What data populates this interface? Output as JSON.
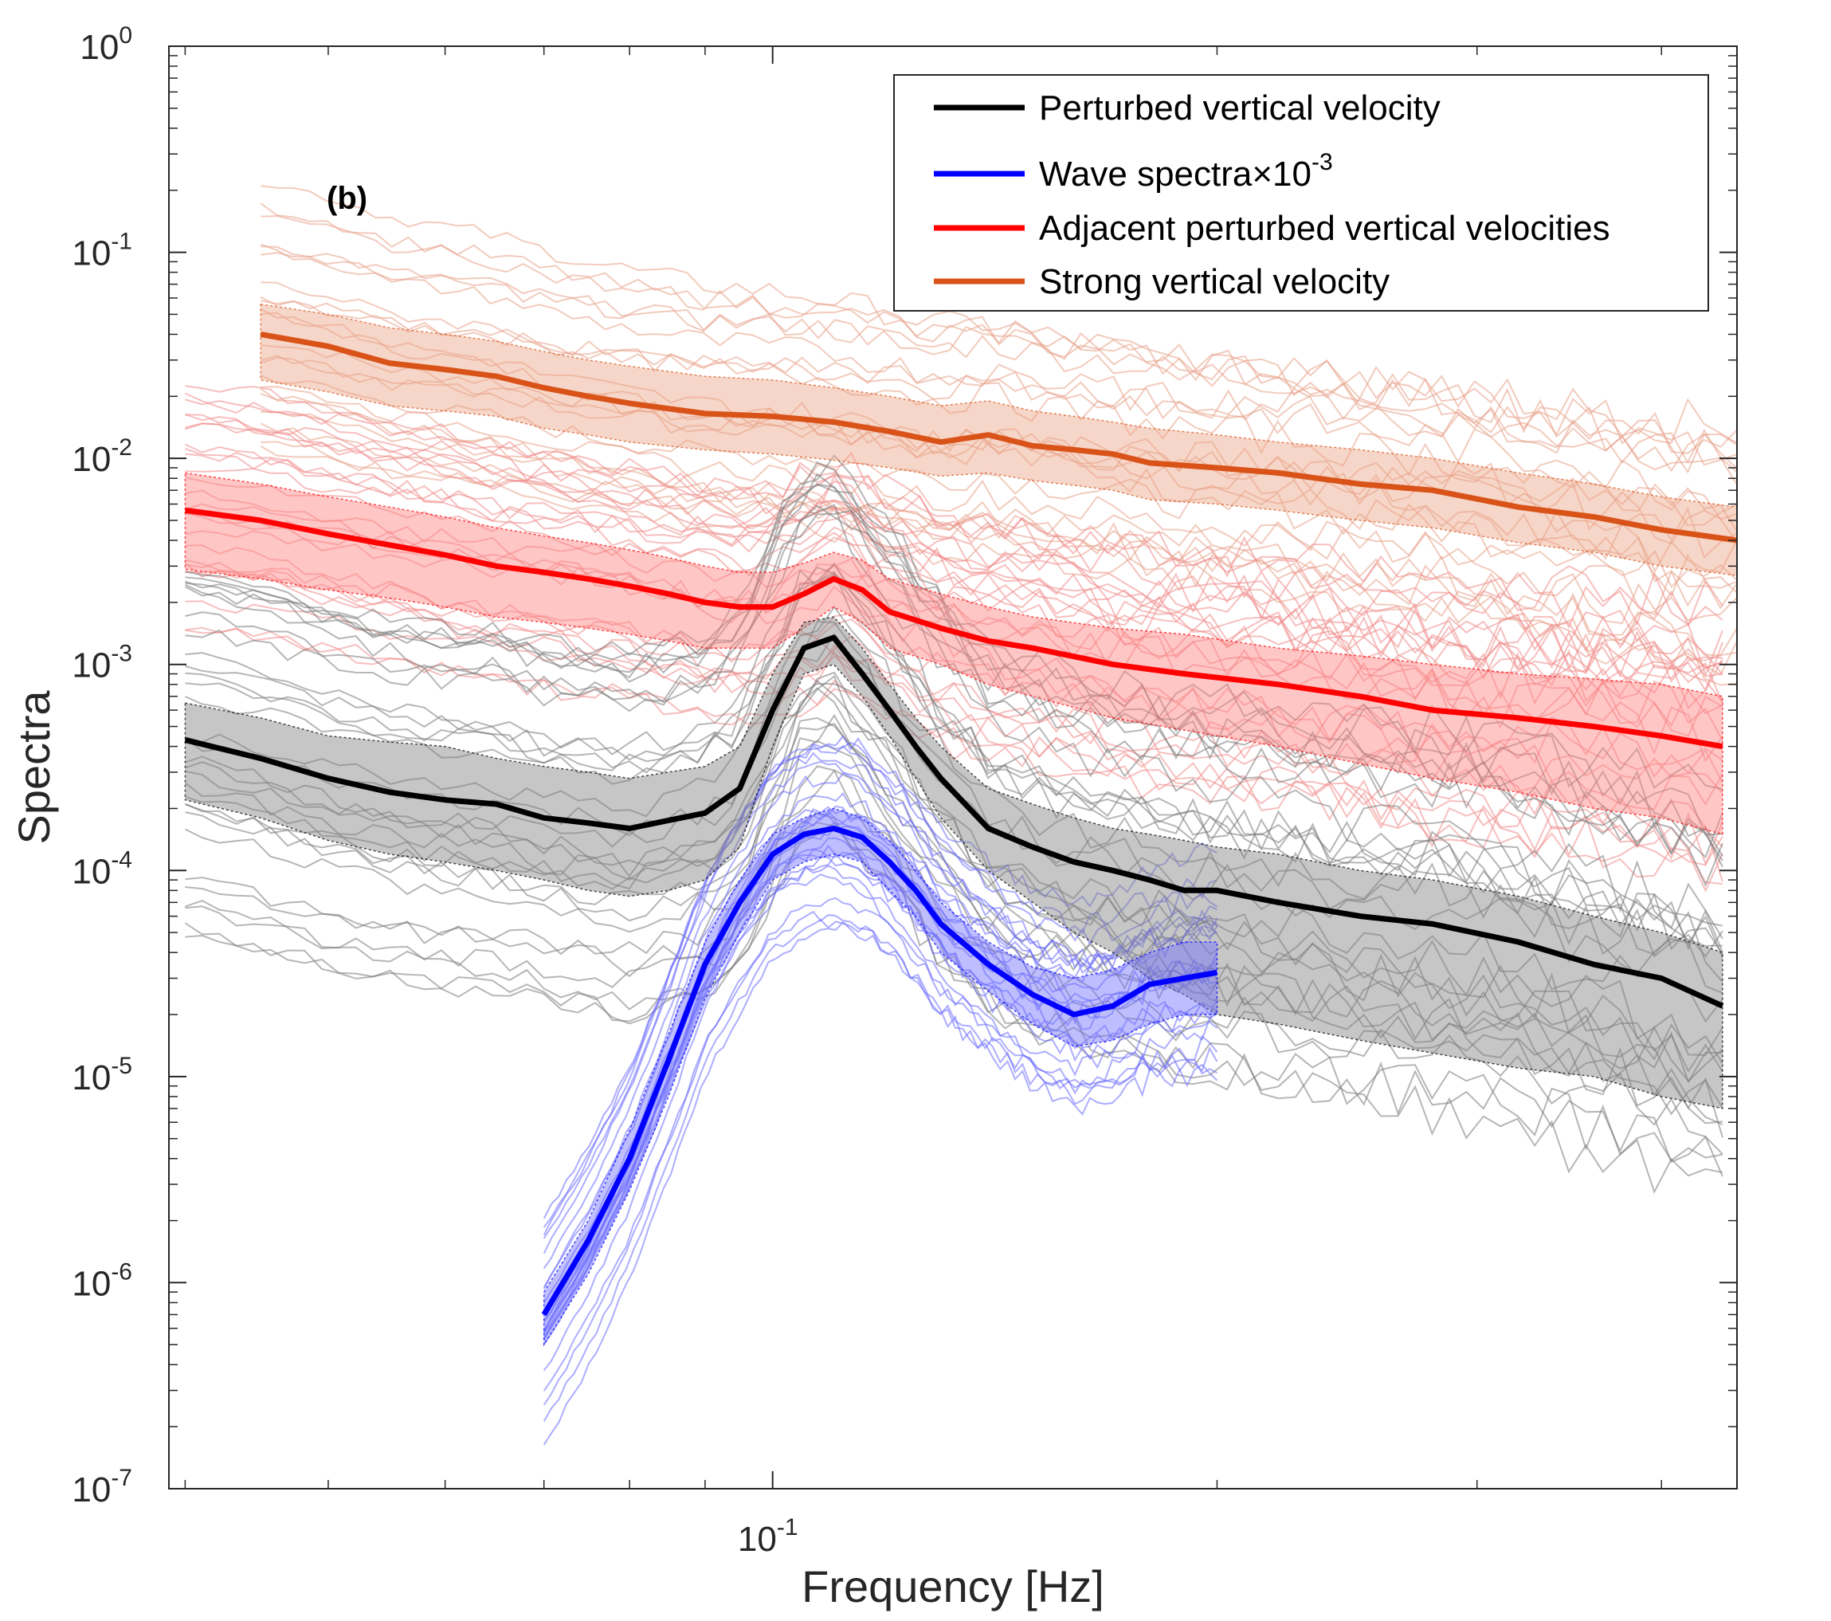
{
  "chart_data": {
    "type": "line",
    "panel_label": "(b)",
    "xlabel": "Frequency [Hz]",
    "ylabel": "Spectra",
    "x_scale": "log",
    "y_scale": "log",
    "xlim": [
      0.039,
      0.45
    ],
    "ylim": [
      1e-07,
      1
    ],
    "x_ticks": [
      {
        "value": 0.1,
        "base": "10",
        "exp": "-1"
      }
    ],
    "y_ticks": [
      {
        "value": 1,
        "base": "10",
        "exp": "0"
      },
      {
        "value": 0.1,
        "base": "10",
        "exp": "-1"
      },
      {
        "value": 0.01,
        "base": "10",
        "exp": "-2"
      },
      {
        "value": 0.001,
        "base": "10",
        "exp": "-3"
      },
      {
        "value": 0.0001,
        "base": "10",
        "exp": "-4"
      },
      {
        "value": 1e-05,
        "base": "10",
        "exp": "-5"
      },
      {
        "value": 1e-06,
        "base": "10",
        "exp": "-6"
      },
      {
        "value": 1e-07,
        "base": "10",
        "exp": "-7"
      }
    ],
    "grid": false,
    "legend_position": "top-right",
    "series": [
      {
        "name": "Perturbed vertical velocity",
        "color": "#000000",
        "band_color": "#808080",
        "x": [
          0.04,
          0.045,
          0.05,
          0.055,
          0.06,
          0.065,
          0.07,
          0.075,
          0.08,
          0.085,
          0.09,
          0.095,
          0.1,
          0.105,
          0.11,
          0.115,
          0.12,
          0.125,
          0.13,
          0.14,
          0.15,
          0.16,
          0.17,
          0.18,
          0.19,
          0.2,
          0.22,
          0.25,
          0.28,
          0.32,
          0.36,
          0.4,
          0.44
        ],
        "values": [
          0.00043,
          0.00035,
          0.00028,
          0.00024,
          0.00022,
          0.00021,
          0.00018,
          0.00017,
          0.00016,
          0.000175,
          0.00019,
          0.00025,
          0.0006,
          0.0012,
          0.00135,
          0.0009,
          0.0006,
          0.0004,
          0.00028,
          0.00016,
          0.00013,
          0.00011,
          0.0001,
          9e-05,
          8e-05,
          8e-05,
          7e-05,
          6e-05,
          5.5e-05,
          4.5e-05,
          3.5e-05,
          3e-05,
          2.2e-05
        ],
        "band_upper": [
          0.00065,
          0.00055,
          0.00045,
          0.00042,
          0.0004,
          0.00035,
          0.00032,
          0.0003,
          0.00028,
          0.0003,
          0.00032,
          0.0004,
          0.0009,
          0.0016,
          0.0017,
          0.0012,
          0.0008,
          0.00055,
          0.0004,
          0.00025,
          0.00021,
          0.00018,
          0.00016,
          0.00015,
          0.00014,
          0.00013,
          0.00012,
          0.0001,
          9e-05,
          7.5e-05,
          6e-05,
          5e-05,
          4e-05
        ],
        "band_lower": [
          0.00022,
          0.00018,
          0.00014,
          0.00012,
          0.00011,
          0.0001,
          9e-05,
          8e-05,
          7.5e-05,
          8e-05,
          9e-05,
          0.00013,
          0.0004,
          0.0009,
          0.001,
          0.0007,
          0.00045,
          0.00028,
          0.00018,
          0.0001,
          7e-05,
          5e-05,
          4e-05,
          3e-05,
          2.5e-05,
          2e-05,
          1.8e-05,
          1.5e-05,
          1.3e-05,
          1.1e-05,
          1e-05,
          8e-06,
          7e-06
        ]
      },
      {
        "name": "Wave spectra",
        "name_multiplier": "10",
        "name_multiplier_exp": "-3",
        "color": "#0000ff",
        "band_color": "#6f6fff",
        "x": [
          0.07,
          0.075,
          0.08,
          0.085,
          0.09,
          0.095,
          0.1,
          0.105,
          0.11,
          0.115,
          0.12,
          0.125,
          0.13,
          0.14,
          0.15,
          0.16,
          0.17,
          0.18,
          0.19,
          0.2
        ],
        "values": [
          7e-07,
          1.6e-06,
          4e-06,
          1.2e-05,
          3.5e-05,
          7e-05,
          0.00012,
          0.00015,
          0.00016,
          0.000145,
          0.00011,
          8e-05,
          5.5e-05,
          3.5e-05,
          2.5e-05,
          2e-05,
          2.2e-05,
          2.8e-05,
          3e-05,
          3.2e-05
        ],
        "band_upper": [
          9e-07,
          2e-06,
          5.5e-06,
          1.6e-05,
          4.5e-05,
          9e-05,
          0.00015,
          0.00018,
          0.0002,
          0.00018,
          0.00014,
          0.0001,
          7e-05,
          4.5e-05,
          3.4e-05,
          3e-05,
          3.3e-05,
          4e-05,
          4.5e-05,
          4.5e-05
        ],
        "band_lower": [
          5e-07,
          1.1e-06,
          2.8e-06,
          8e-06,
          2.4e-05,
          5e-05,
          9e-05,
          0.00011,
          0.00012,
          0.00011,
          8e-05,
          6e-05,
          4e-05,
          2.6e-05,
          1.8e-05,
          1.4e-05,
          1.5e-05,
          1.8e-05,
          2e-05,
          2e-05
        ]
      },
      {
        "name": "Adjacent perturbed vertical velocities",
        "color": "#ff0000",
        "band_color": "#ff8080",
        "x": [
          0.04,
          0.045,
          0.05,
          0.055,
          0.06,
          0.065,
          0.07,
          0.075,
          0.08,
          0.085,
          0.09,
          0.095,
          0.1,
          0.105,
          0.11,
          0.115,
          0.12,
          0.13,
          0.14,
          0.15,
          0.17,
          0.19,
          0.22,
          0.25,
          0.28,
          0.32,
          0.36,
          0.4,
          0.44
        ],
        "values": [
          0.0056,
          0.005,
          0.0043,
          0.0038,
          0.0034,
          0.003,
          0.0028,
          0.0026,
          0.0024,
          0.0022,
          0.002,
          0.0019,
          0.0019,
          0.0022,
          0.0026,
          0.0023,
          0.0018,
          0.0015,
          0.0013,
          0.0012,
          0.001,
          0.0009,
          0.0008,
          0.0007,
          0.0006,
          0.00055,
          0.0005,
          0.00045,
          0.0004
        ],
        "band_upper": [
          0.0085,
          0.0075,
          0.0065,
          0.0058,
          0.0052,
          0.0046,
          0.0042,
          0.0039,
          0.0036,
          0.0033,
          0.003,
          0.0028,
          0.0028,
          0.0031,
          0.0035,
          0.0032,
          0.0026,
          0.0022,
          0.0019,
          0.0017,
          0.0015,
          0.0014,
          0.0012,
          0.0011,
          0.001,
          0.0009,
          0.00085,
          0.0008,
          0.0007
        ],
        "band_lower": [
          0.0029,
          0.0026,
          0.0023,
          0.0021,
          0.0019,
          0.0017,
          0.0016,
          0.0015,
          0.0014,
          0.0013,
          0.0012,
          0.0012,
          0.0012,
          0.0015,
          0.0019,
          0.0016,
          0.0012,
          0.001,
          0.0008,
          0.0007,
          0.00055,
          0.00048,
          0.0004,
          0.00033,
          0.00028,
          0.00024,
          0.0002,
          0.00018,
          0.00015
        ]
      },
      {
        "name": "Strong vertical velocity",
        "color": "#d95319",
        "band_color": "#eba585",
        "x": [
          0.045,
          0.05,
          0.055,
          0.06,
          0.065,
          0.07,
          0.075,
          0.08,
          0.09,
          0.1,
          0.11,
          0.12,
          0.13,
          0.14,
          0.15,
          0.16,
          0.17,
          0.18,
          0.2,
          0.22,
          0.25,
          0.28,
          0.32,
          0.36,
          0.4,
          0.45
        ],
        "values": [
          0.04,
          0.035,
          0.029,
          0.027,
          0.025,
          0.022,
          0.02,
          0.0185,
          0.0165,
          0.016,
          0.015,
          0.0135,
          0.012,
          0.013,
          0.0115,
          0.011,
          0.0105,
          0.0095,
          0.009,
          0.0085,
          0.0075,
          0.007,
          0.0058,
          0.0052,
          0.0045,
          0.004
        ],
        "band_upper": [
          0.056,
          0.05,
          0.043,
          0.04,
          0.037,
          0.033,
          0.03,
          0.028,
          0.025,
          0.024,
          0.022,
          0.02,
          0.018,
          0.019,
          0.017,
          0.016,
          0.015,
          0.014,
          0.013,
          0.012,
          0.011,
          0.01,
          0.0085,
          0.0075,
          0.0065,
          0.0058
        ],
        "band_lower": [
          0.024,
          0.021,
          0.018,
          0.017,
          0.016,
          0.014,
          0.013,
          0.012,
          0.011,
          0.0105,
          0.0098,
          0.009,
          0.0082,
          0.0085,
          0.0078,
          0.0074,
          0.007,
          0.0063,
          0.006,
          0.0056,
          0.005,
          0.0046,
          0.0039,
          0.0035,
          0.003,
          0.0027
        ]
      }
    ]
  }
}
